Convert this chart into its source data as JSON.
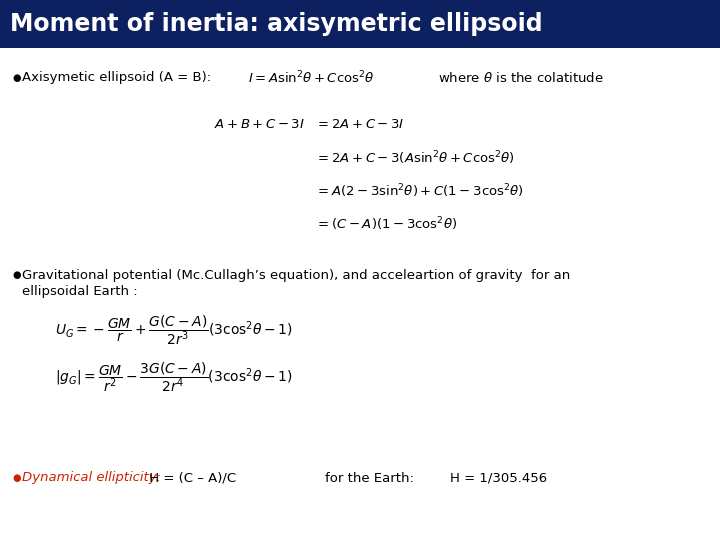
{
  "title": "Moment of inertia: axisymetric ellipsoid",
  "title_bg": "#0d2060",
  "title_color": "#ffffff",
  "title_fontsize": 17,
  "bg_color": "#ffffff",
  "bullet_color": "#000000",
  "red_color": "#cc2200",
  "body_fontsize": 9.5,
  "math_fontsize": 9.5,
  "line1_text": "Axisymetic ellipsoid (A = B):",
  "line1_formula": "$I = A\\sin^2\\!\\theta + C\\cos^2\\!\\theta$",
  "line1_where": "where $\\theta$ is the colatitude",
  "eq_left": "$A + B + C - 3I$",
  "eq_rows": [
    "$= 2A + C - 3I$",
    "$= 2A + C - 3(A\\sin^2\\!\\theta + C\\cos^2\\!\\theta)$",
    "$= A(2 - 3\\sin^2\\!\\theta) + C(1 - 3\\cos^2\\!\\theta)$",
    "$= (C - A)(1 - 3\\cos^2\\!\\theta)$"
  ],
  "bullet2_line1": "Gravitational potential (Mc.Cullagh’s equation), and acceleartion of gravity  for an",
  "bullet2_line2": "ellipsoidal Earth :",
  "grav_eq1": "$U_G = -\\dfrac{GM}{r} + \\dfrac{G(C-A)}{2r^3}(3\\cos^2\\!\\theta - 1)$",
  "grav_eq2": "$|g_G| = \\dfrac{GM}{r^2} - \\dfrac{3G(C-A)}{2r^4}(3\\cos^2\\!\\theta - 1)$",
  "dyn_label": "Dynamical ellipticity:",
  "dyn_formula": " H = (C – A)/C",
  "dyn_earth": "for the Earth:",
  "dyn_value": "H = 1/305.456"
}
